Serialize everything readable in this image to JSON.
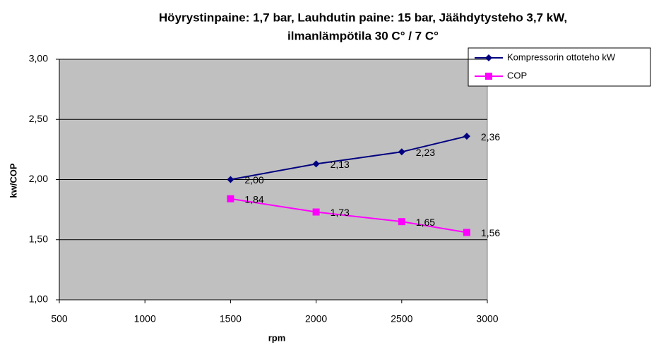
{
  "chart_data": {
    "type": "line",
    "title": [
      "Höyrystinpaine: 1,7 bar, Lauhdutin paine: 15 bar, Jäähdytysteho 3,7 kW,",
      "ilmanlämpötila 30 C° / 7 C°"
    ],
    "x_label": "rpm",
    "y_label": "kw/COP",
    "x": [
      1500,
      2000,
      2500,
      2880
    ],
    "series": [
      {
        "name": "Kompressorin  ottoteho  kW",
        "color": "#000080",
        "marker": "diamond",
        "values": [
          2.0,
          2.13,
          2.23,
          2.36
        ],
        "value_labels": [
          "2,00",
          "2,13",
          "2,23",
          "2,36"
        ]
      },
      {
        "name": "COP",
        "color": "#ff00ff",
        "marker": "square",
        "values": [
          1.84,
          1.73,
          1.65,
          1.56
        ],
        "value_labels": [
          "1,84",
          "1,73",
          "1,65",
          "1,56"
        ]
      }
    ],
    "xlim": [
      500,
      3000
    ],
    "xticks": [
      500,
      1000,
      1500,
      2000,
      2500,
      3000
    ],
    "ylim": [
      1.0,
      3.0
    ],
    "yticks": [
      {
        "value": 1.0,
        "label": "1,00"
      },
      {
        "value": 1.5,
        "label": "1,50"
      },
      {
        "value": 2.0,
        "label": "2,00"
      },
      {
        "value": 2.5,
        "label": "2,50"
      },
      {
        "value": 3.0,
        "label": "3,00"
      }
    ],
    "grid": true,
    "plot_background": "#c0c0c0",
    "legend": "top-right"
  }
}
